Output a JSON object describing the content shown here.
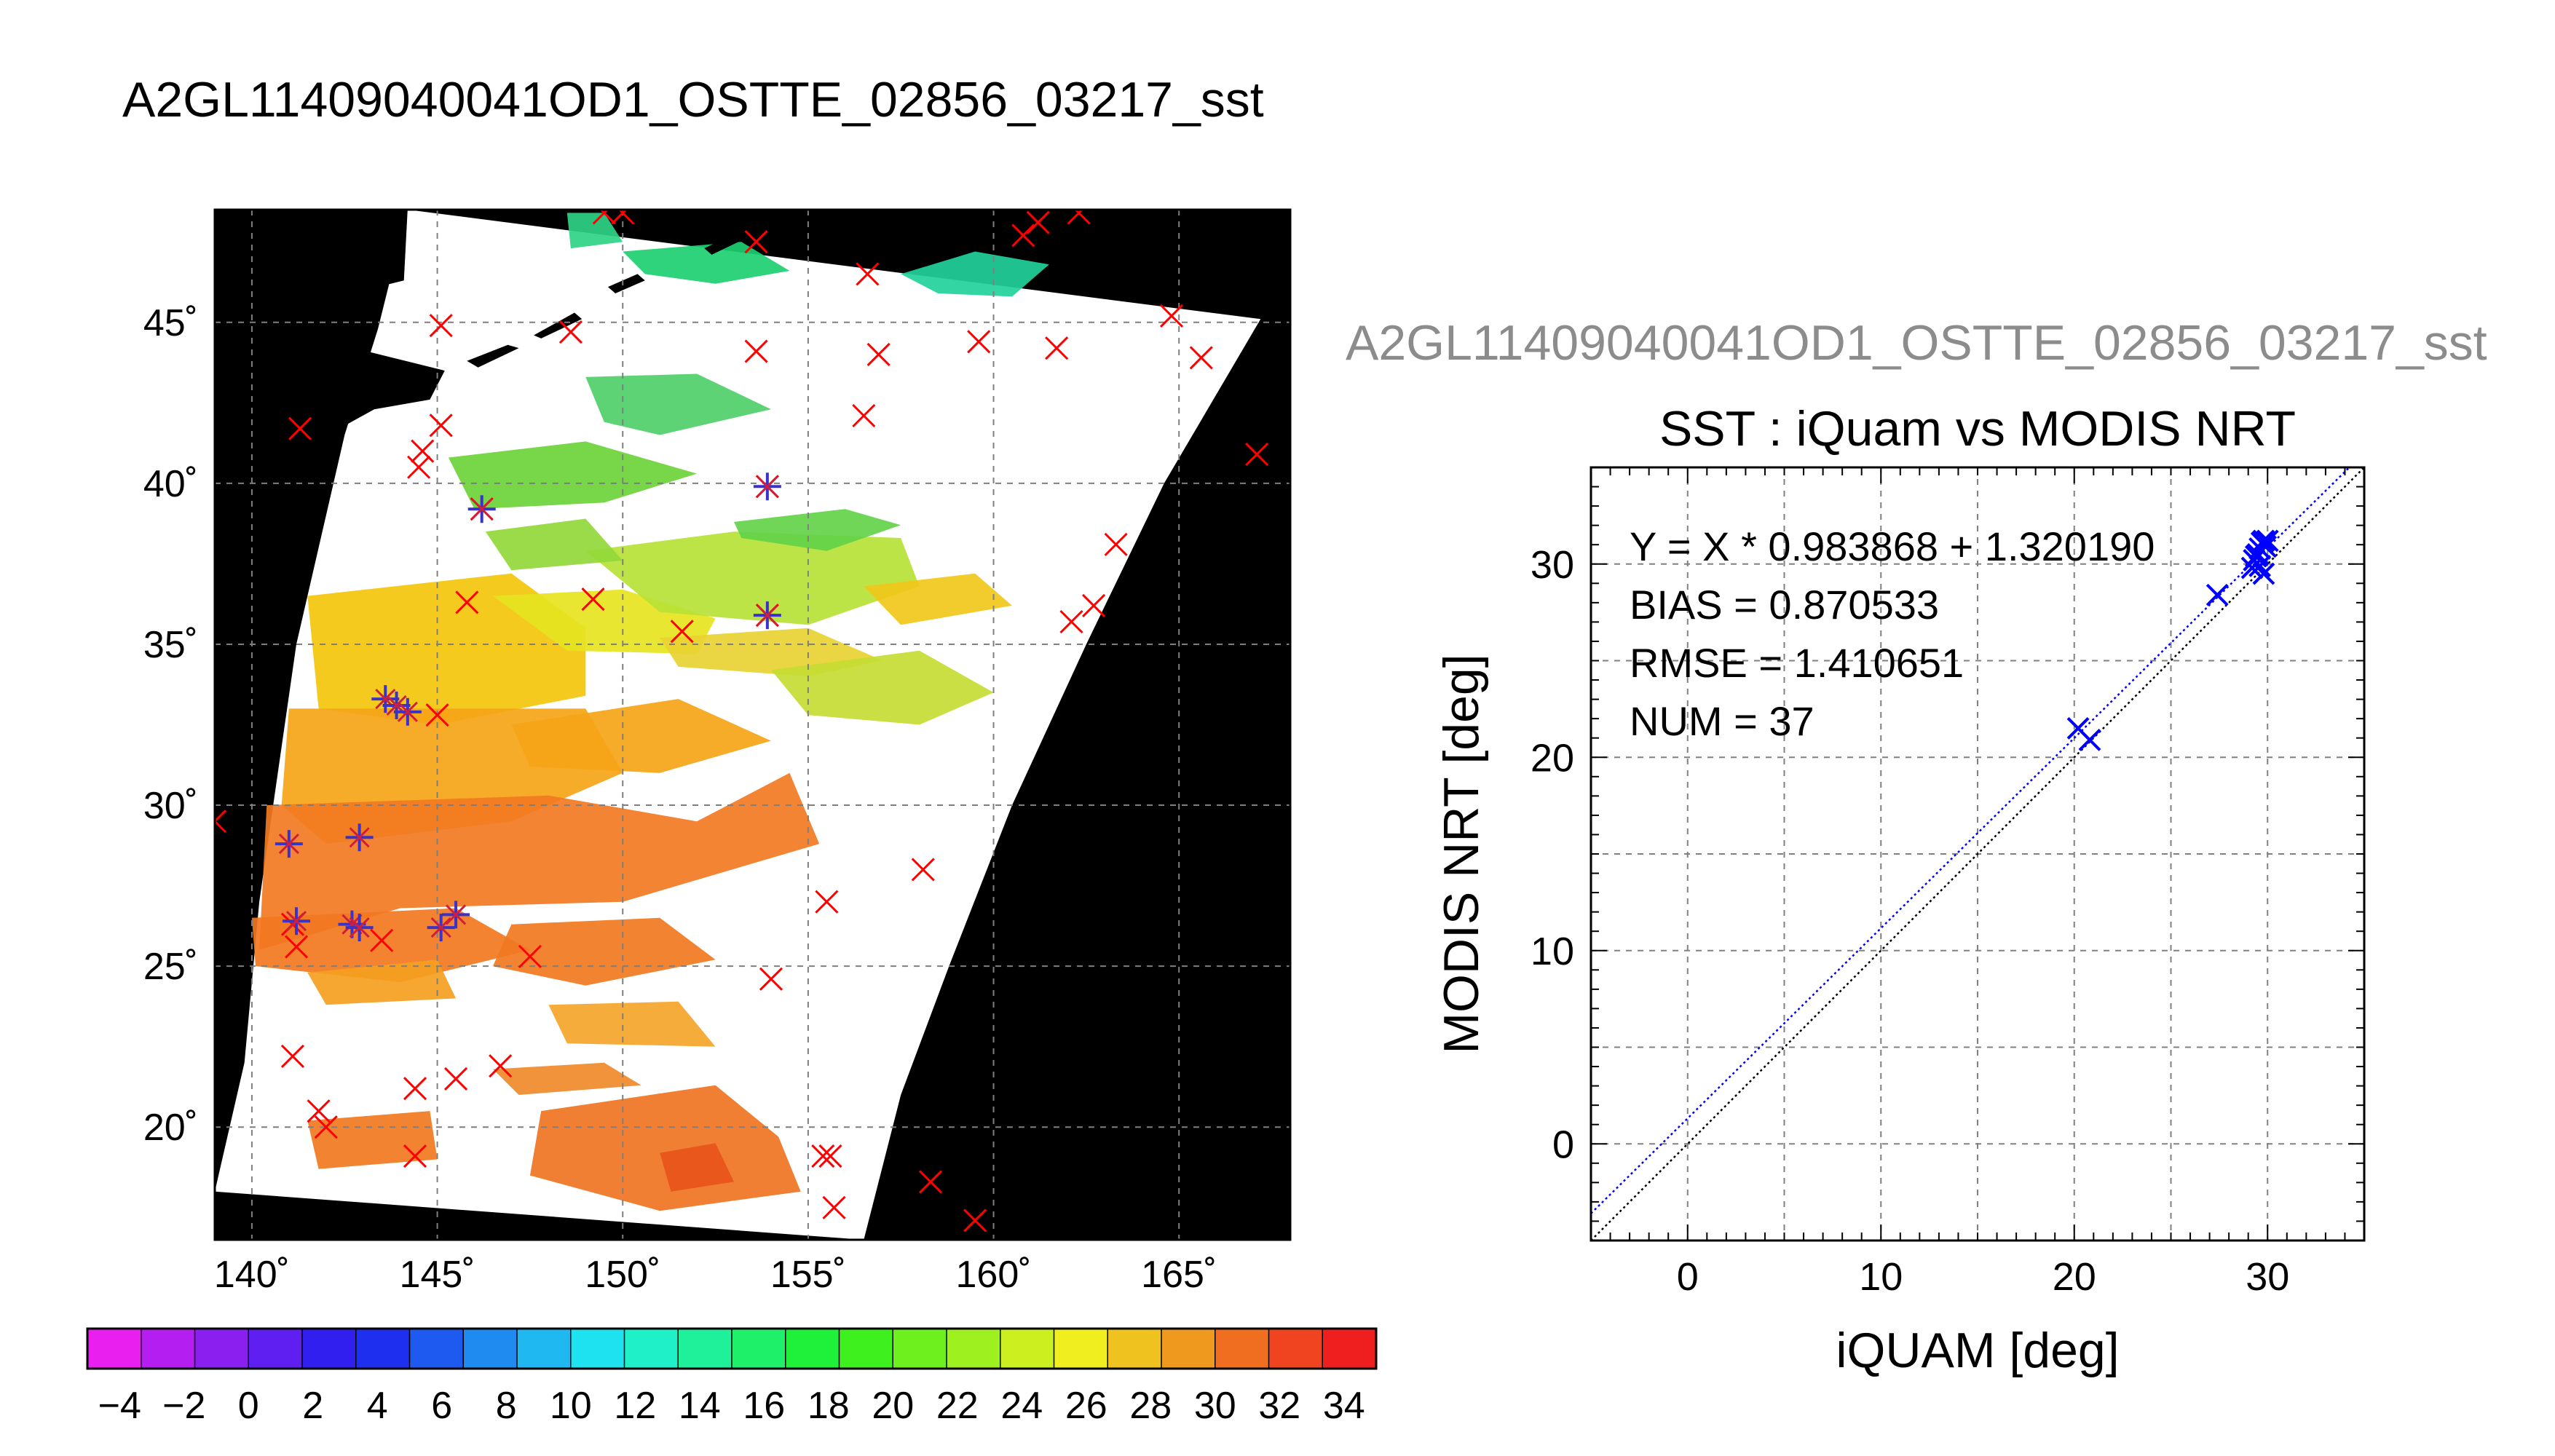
{
  "main_title": "A2GL11409040041OD1_OSTTE_02856_03217_sst",
  "chart_data": [
    {
      "type": "map",
      "title": "A2GL11409040041OD1_OSTTE_02856_03217_sst",
      "xlim": [
        139,
        168
      ],
      "ylim": [
        16.5,
        48.5
      ],
      "lon_ticks": [
        "140˚",
        "145˚",
        "150˚",
        "155˚",
        "160˚",
        "165˚"
      ],
      "lat_ticks": [
        "20˚",
        "25˚",
        "30˚",
        "35˚",
        "40˚",
        "45˚"
      ],
      "swath_edge_left": [
        [
          144.2,
          48.5
        ],
        [
          143.4,
          44.8
        ],
        [
          142.5,
          41.5
        ],
        [
          141.2,
          35
        ],
        [
          140.2,
          27
        ],
        [
          139.8,
          22
        ],
        [
          139,
          18
        ]
      ],
      "swath_edge_right": [
        [
          167.2,
          45.1
        ],
        [
          164.6,
          40
        ],
        [
          162.5,
          35
        ],
        [
          160.5,
          30
        ],
        [
          158.8,
          25
        ],
        [
          157.5,
          21
        ],
        [
          156.5,
          16.5
        ]
      ],
      "sst_regions": [
        {
          "color": "#f2c60a",
          "points": [
            [
              141.5,
              36.5
            ],
            [
              147,
              37.2
            ],
            [
              149,
              35.5
            ],
            [
              149,
              33.4
            ],
            [
              145,
              32.5
            ],
            [
              141.8,
              33
            ]
          ]
        },
        {
          "color": "#f5a417",
          "points": [
            [
              141,
              33
            ],
            [
              149,
              33
            ],
            [
              150,
              31
            ],
            [
              147,
              29.5
            ],
            [
              142,
              28.8
            ],
            [
              140.8,
              30
            ]
          ]
        },
        {
          "color": "#f27a22",
          "points": [
            [
              140.4,
              30
            ],
            [
              148,
              30.3
            ],
            [
              152,
              29.5
            ],
            [
              154.5,
              31
            ],
            [
              155.3,
              28.8
            ],
            [
              150,
              27
            ],
            [
              144,
              26.8
            ],
            [
              140.2,
              25.5
            ]
          ]
        },
        {
          "color": "#f5a417",
          "points": [
            [
              147,
              32.5
            ],
            [
              151.5,
              33.3
            ],
            [
              154,
              32
            ],
            [
              151,
              31
            ],
            [
              147.5,
              31.2
            ]
          ]
        },
        {
          "color": "#f2781f",
          "points": [
            [
              140,
              26.5
            ],
            [
              145.5,
              26.8
            ],
            [
              147.5,
              25.5
            ],
            [
              144,
              24.5
            ],
            [
              140.1,
              25
            ]
          ]
        },
        {
          "color": "#f5a020",
          "points": [
            [
              141.5,
              24.8
            ],
            [
              145,
              25.2
            ],
            [
              145.5,
              24
            ],
            [
              142,
              23.8
            ]
          ]
        },
        {
          "color": "#f07820",
          "points": [
            [
              147,
              26.3
            ],
            [
              151,
              26.5
            ],
            [
              152.5,
              25.2
            ],
            [
              149,
              24.4
            ],
            [
              146.5,
              25
            ]
          ]
        },
        {
          "color": "#f5a52a",
          "points": [
            [
              148,
              23.8
            ],
            [
              151.5,
              23.9
            ],
            [
              152.5,
              22.5
            ],
            [
              148.5,
              22.6
            ]
          ]
        },
        {
          "color": "#f08a2a",
          "points": [
            [
              146.5,
              21.8
            ],
            [
              149.5,
              22
            ],
            [
              150.5,
              21.3
            ],
            [
              147.2,
              21
            ]
          ]
        },
        {
          "color": "#f0781f",
          "points": [
            [
              141.5,
              20.2
            ],
            [
              144.8,
              20.5
            ],
            [
              145,
              19
            ],
            [
              141.8,
              18.7
            ]
          ]
        },
        {
          "color": "#f07422",
          "points": [
            [
              147.8,
              20.5
            ],
            [
              152.5,
              21.3
            ],
            [
              154.2,
              19.7
            ],
            [
              154.8,
              18
            ],
            [
              151,
              17.4
            ],
            [
              147.5,
              18.5
            ]
          ]
        },
        {
          "color": "#e8541a",
          "points": [
            [
              151,
              19.2
            ],
            [
              152.5,
              19.5
            ],
            [
              153,
              18.3
            ],
            [
              151.3,
              18
            ]
          ]
        },
        {
          "color": "#e6e420",
          "points": [
            [
              146.5,
              36.5
            ],
            [
              150,
              36.7
            ],
            [
              152.5,
              35.8
            ],
            [
              152,
              34.7
            ],
            [
              148.5,
              34.8
            ]
          ]
        },
        {
          "color": "#b7e236",
          "points": [
            [
              149,
              37.9
            ],
            [
              153,
              38.5
            ],
            [
              157.5,
              38.3
            ],
            [
              158,
              36.8
            ],
            [
              155,
              35.6
            ],
            [
              151,
              36
            ]
          ]
        },
        {
          "color": "#e8d232",
          "points": [
            [
              151,
              35.2
            ],
            [
              155,
              35.5
            ],
            [
              157,
              34.5
            ],
            [
              155,
              34
            ],
            [
              151.5,
              34.3
            ]
          ]
        },
        {
          "color": "#c6dc33",
          "points": [
            [
              154,
              34.2
            ],
            [
              158,
              34.8
            ],
            [
              160,
              33.5
            ],
            [
              158,
              32.5
            ],
            [
              155,
              32.8
            ]
          ]
        },
        {
          "color": "#6cd23a",
          "points": [
            [
              145.3,
              40.8
            ],
            [
              149,
              41.3
            ],
            [
              152,
              40.3
            ],
            [
              149.5,
              39.4
            ],
            [
              146,
              39.2
            ]
          ]
        },
        {
          "color": "#92d83a",
          "points": [
            [
              146.3,
              38.5
            ],
            [
              149,
              38.9
            ],
            [
              150,
              37.6
            ],
            [
              147,
              37.3
            ]
          ]
        },
        {
          "color": "#4fcf6a",
          "points": [
            [
              149,
              43.3
            ],
            [
              152,
              43.4
            ],
            [
              154,
              42.3
            ],
            [
              151,
              41.5
            ],
            [
              149.5,
              41.9
            ]
          ]
        },
        {
          "color": "#1ccf70",
          "points": [
            [
              150,
              47.2
            ],
            [
              153.2,
              47.5
            ],
            [
              154.5,
              46.6
            ],
            [
              152.5,
              46.2
            ],
            [
              150.6,
              46.5
            ]
          ]
        },
        {
          "color": "#2fd285",
          "points": [
            [
              148.5,
              48.4
            ],
            [
              149.5,
              48.4
            ],
            [
              150,
              47.5
            ],
            [
              148.6,
              47.3
            ]
          ]
        },
        {
          "color": "#22d39a",
          "points": [
            [
              157.5,
              46.5
            ],
            [
              159.5,
              47.2
            ],
            [
              161.5,
              46.8
            ],
            [
              160.5,
              45.8
            ],
            [
              158.5,
              45.9
            ]
          ]
        },
        {
          "color": "#63d24a",
          "points": [
            [
              153,
              38.8
            ],
            [
              156,
              39.2
            ],
            [
              157.5,
              38.7
            ],
            [
              155.5,
              37.9
            ],
            [
              153.2,
              38.3
            ]
          ]
        },
        {
          "color": "#f0c81a",
          "points": [
            [
              156.5,
              36.8
            ],
            [
              159.5,
              37.2
            ],
            [
              160.5,
              36.2
            ],
            [
              157.5,
              35.6
            ]
          ]
        }
      ],
      "land": [
        {
          "name": "hokkaido",
          "points": [
            [
              144.1,
              46.3
            ],
            [
              144.2,
              48.5
            ],
            [
              141.2,
              48.5
            ],
            [
              140.8,
              47
            ],
            [
              141.3,
              45.5
            ]
          ]
        },
        {
          "name": "honshu",
          "points": [
            [
              141.4,
              44.9
            ],
            [
              143.1,
              44.1
            ],
            [
              145.2,
              43.5
            ],
            [
              144.8,
              42.6
            ],
            [
              143.3,
              42.3
            ],
            [
              142.2,
              41.6
            ],
            [
              141.5,
              43.5
            ]
          ]
        },
        {
          "name": "kuril-1",
          "points": [
            [
              145.8,
              43.8
            ],
            [
              146.9,
              44.3
            ],
            [
              147.2,
              44.2
            ],
            [
              146.1,
              43.6
            ]
          ]
        },
        {
          "name": "kuril-2",
          "points": [
            [
              147.6,
              44.6
            ],
            [
              148.7,
              45.3
            ],
            [
              148.9,
              45.1
            ],
            [
              147.8,
              44.5
            ]
          ]
        },
        {
          "name": "kuril-3",
          "points": [
            [
              149.6,
              46.1
            ],
            [
              150.4,
              46.5
            ],
            [
              150.6,
              46.3
            ],
            [
              149.8,
              45.9
            ]
          ]
        },
        {
          "name": "kuril-4",
          "points": [
            [
              152.2,
              47.3
            ],
            [
              153.1,
              47.8
            ],
            [
              153.3,
              47.6
            ],
            [
              152.4,
              47.1
            ]
          ]
        }
      ],
      "markers_x": [
        [
          149.5,
          48.4
        ],
        [
          150,
          48.4
        ],
        [
          153.6,
          47.5
        ],
        [
          156.6,
          46.5
        ],
        [
          160.8,
          47.7
        ],
        [
          161.2,
          48.1
        ],
        [
          162.3,
          48.4
        ],
        [
          164.8,
          45.2
        ],
        [
          165.6,
          43.9
        ],
        [
          167.1,
          40.9
        ],
        [
          145.1,
          44.9
        ],
        [
          148.6,
          44.7
        ],
        [
          153.6,
          44.1
        ],
        [
          156.9,
          44
        ],
        [
          159.6,
          44.4
        ],
        [
          161.7,
          44.2
        ],
        [
          141.3,
          41.7
        ],
        [
          145.1,
          41.8
        ],
        [
          144.6,
          41
        ],
        [
          144.5,
          40.5
        ],
        [
          156.5,
          42.1
        ],
        [
          153.9,
          39.9
        ],
        [
          146.2,
          39.2
        ],
        [
          163.3,
          38.1
        ],
        [
          145.8,
          36.3
        ],
        [
          149.2,
          36.4
        ],
        [
          151.6,
          35.4
        ],
        [
          153.9,
          35.9
        ],
        [
          162.7,
          36.2
        ],
        [
          162.1,
          35.7
        ],
        [
          145,
          32.8
        ],
        [
          139,
          29.5
        ],
        [
          158.1,
          28
        ],
        [
          155.5,
          27
        ],
        [
          147.5,
          25.3
        ],
        [
          154,
          24.6
        ],
        [
          141.1,
          22.2
        ],
        [
          141.8,
          20.5
        ],
        [
          142,
          20
        ],
        [
          144.4,
          21.2
        ],
        [
          145.5,
          21.5
        ],
        [
          146.7,
          21.9
        ],
        [
          144.4,
          19.1
        ],
        [
          155.4,
          19.1
        ],
        [
          155.6,
          19.1
        ],
        [
          155.7,
          17.5
        ],
        [
          158.3,
          18.3
        ],
        [
          159.5,
          17.1
        ],
        [
          141.1,
          26.3
        ],
        [
          141.2,
          25.6
        ],
        [
          143.5,
          25.8
        ]
      ],
      "markers_star": [
        [
          146.2,
          39.2
        ],
        [
          153.9,
          39.9
        ],
        [
          153.9,
          35.9
        ],
        [
          143.6,
          33.3
        ],
        [
          143.9,
          33.1
        ],
        [
          144.2,
          32.9
        ],
        [
          141,
          28.8
        ],
        [
          142.9,
          29
        ],
        [
          141.2,
          26.4
        ],
        [
          142.7,
          26.3
        ],
        [
          142.9,
          26.2
        ],
        [
          145.5,
          26.6
        ],
        [
          145.1,
          26.2
        ]
      ],
      "colorbar": {
        "ticks": [
          "−4",
          "−2",
          "0",
          "2",
          "4",
          "6",
          "8",
          "10",
          "12",
          "14",
          "16",
          "18",
          "20",
          "22",
          "24",
          "26",
          "28",
          "30",
          "32",
          "34"
        ],
        "colors": [
          "#e91ff0",
          "#b51ef0",
          "#8a1ff0",
          "#5f1ff0",
          "#311ff0",
          "#1f2ff0",
          "#1f5af0",
          "#1f8af0",
          "#1fb8f0",
          "#1fe2f0",
          "#1ff0c8",
          "#1ff09a",
          "#1ff06a",
          "#1ff03a",
          "#3ff01f",
          "#6ef01f",
          "#9ef01f",
          "#ccf01f",
          "#f0ee1f",
          "#f0c21f",
          "#f0991f",
          "#f06e1f",
          "#f0431f",
          "#f01f1f"
        ]
      }
    },
    {
      "type": "scatter",
      "title": "SST : iQuam vs MODIS NRT",
      "subtitle": "A2GL11409040041OD1_OSTTE_02856_03217_sst",
      "xlabel": "iQUAM [deg]",
      "ylabel": "MODIS NRT [deg]",
      "xlim": [
        -5,
        35
      ],
      "ylim": [
        -5,
        35
      ],
      "xticks": [
        0,
        10,
        20,
        30
      ],
      "yticks": [
        0,
        10,
        20,
        30
      ],
      "grid": true,
      "fit": {
        "slope": 0.983868,
        "intercept": 1.32019
      },
      "annotations": [
        "Y = X * 0.983868 + 1.320190",
        "BIAS = 0.870533",
        "RMSE = 1.410651",
        "NUM = 37"
      ],
      "points": [
        [
          20.2,
          21.5
        ],
        [
          20.8,
          20.9
        ],
        [
          27.4,
          28.4
        ],
        [
          29.2,
          29.8
        ],
        [
          29.3,
          30.2
        ],
        [
          29.5,
          30.5
        ],
        [
          29.6,
          30.8
        ],
        [
          29.7,
          31.1
        ],
        [
          29.8,
          31.2
        ],
        [
          30,
          31.2
        ],
        [
          29.6,
          29.9
        ],
        [
          29.8,
          29.5
        ],
        [
          29.9,
          30.9
        ],
        [
          29.4,
          30.4
        ]
      ]
    }
  ]
}
